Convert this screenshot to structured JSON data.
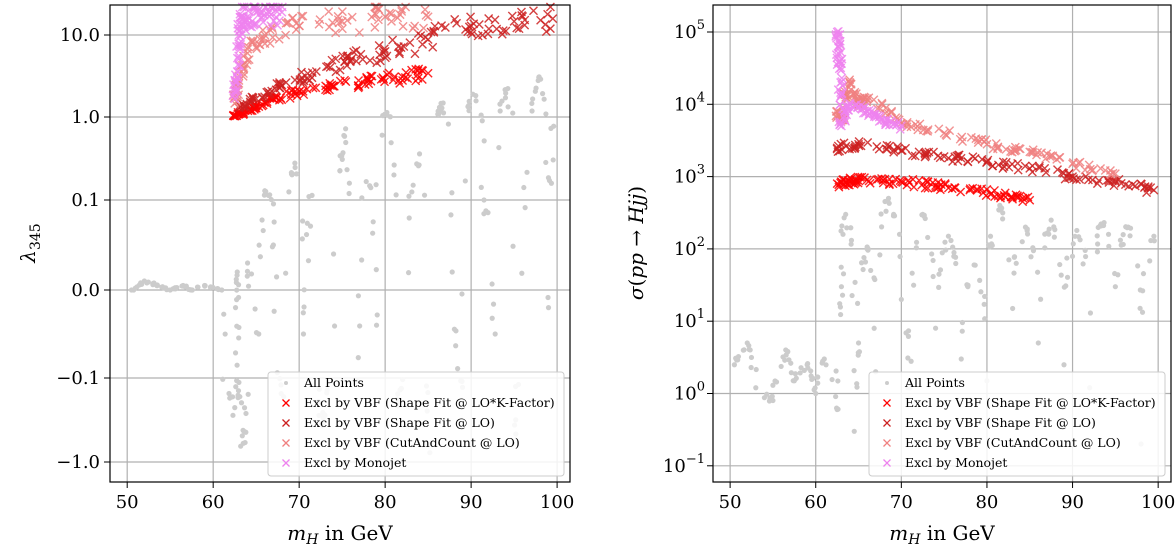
{
  "colors": {
    "all_points": "#cccccc",
    "excl_vbf_shape_lo_kfactor": "#ff0000",
    "excl_vbf_shape_lo": "#cc2020",
    "excl_vbf_cutcount_lo": "#f08080",
    "excl_monojet": "#ee82ee",
    "grid": "#b0b0b0"
  },
  "chart_data": [
    {
      "type": "scatter",
      "xlabel": "m_H in GeV",
      "ylabel": "λ345",
      "yscale": "symlog",
      "xlim": [
        48,
        101.5
      ],
      "x_ticks": [
        50,
        60,
        70,
        80,
        90,
        100
      ],
      "y_ticks": [
        -1.0,
        -0.1,
        0.0,
        0.1,
        1.0,
        10.0
      ],
      "y_tick_labels": [
        "−1.0",
        "−0.1",
        "0.0",
        "0.1",
        "1.0",
        "10.0"
      ],
      "grid": true,
      "legend_position": "lower-right",
      "legend": [
        "All Points",
        "Excl by VBF (Shape Fit @ LO*K-Factor)",
        "Excl by VBF (Shape Fit @ LO)",
        "Excl by VBF (CutAndCount @ LO)",
        "Excl by Monojet"
      ],
      "series": [
        {
          "name": "All Points",
          "marker": "dot",
          "color": "#cccccc",
          "points": [
            [
              50.5,
              0.0
            ],
            [
              52,
              0.01
            ],
            [
              53.5,
              0.005
            ],
            [
              55,
              0.0
            ],
            [
              56.5,
              0.005
            ],
            [
              57.5,
              0.0
            ],
            [
              59,
              0.005
            ],
            [
              61,
              0.0
            ],
            [
              62.3,
              -0.5
            ],
            [
              62.6,
              -0.02
            ],
            [
              62.8,
              0.02
            ],
            [
              63.1,
              -0.3
            ],
            [
              63.5,
              -0.8
            ],
            [
              64,
              0.03
            ],
            [
              65.3,
              -0.05
            ],
            [
              66,
              0.2
            ],
            [
              67,
              0.05
            ],
            [
              68.2,
              -0.3
            ],
            [
              69.5,
              0.5
            ],
            [
              70.5,
              -0.05
            ],
            [
              71.5,
              0.15
            ],
            [
              72.8,
              -0.6
            ],
            [
              74,
              0.04
            ],
            [
              75.2,
              0.8
            ],
            [
              76.5,
              -0.15
            ],
            [
              77.8,
              0.3
            ],
            [
              79,
              -0.04
            ],
            [
              80.2,
              1.5
            ],
            [
              81.5,
              -0.4
            ],
            [
              82.8,
              0.08
            ],
            [
              84,
              0.6
            ],
            [
              85.2,
              -0.9
            ],
            [
              86.5,
              2.5
            ],
            [
              87.8,
              0.02
            ],
            [
              89,
              -0.2
            ],
            [
              90.2,
              3.5
            ],
            [
              91.5,
              0.1
            ],
            [
              92.8,
              -0.05
            ],
            [
              94,
              4.0
            ],
            [
              95.2,
              -0.7
            ],
            [
              96.5,
              0.4
            ],
            [
              97.8,
              5.0
            ],
            [
              99,
              -0.02
            ],
            [
              99.6,
              0.9
            ]
          ]
        },
        {
          "name": "Excl by VBF (Shape Fit @ LO*K-Factor)",
          "marker": "x",
          "color": "#ff0000",
          "points": [
            [
              62.5,
              1.1
            ],
            [
              63.5,
              1.5
            ],
            [
              65,
              2.2
            ],
            [
              67,
              3.0
            ],
            [
              70,
              3.8
            ],
            [
              74,
              4.4
            ],
            [
              78,
              5.0
            ],
            [
              82,
              5.4
            ],
            [
              85,
              5.8
            ]
          ]
        },
        {
          "name": "Excl by VBF (Shape Fit @ LO)",
          "marker": "x",
          "color": "#cc2020",
          "points": [
            [
              63,
              2.0
            ],
            [
              65,
              3.0
            ],
            [
              68,
              4.5
            ],
            [
              72,
              6.0
            ],
            [
              76,
              7.2
            ],
            [
              80,
              8.2
            ],
            [
              85,
              9.5
            ],
            [
              90,
              11.0
            ],
            [
              95,
              11.5
            ],
            [
              99.5,
              11.8
            ]
          ]
        },
        {
          "name": "Excl by VBF (CutAndCount @ LO)",
          "marker": "x",
          "color": "#f08080",
          "points": [
            [
              62.5,
              2.5
            ],
            [
              63,
              5.0
            ],
            [
              64,
              8.0
            ],
            [
              66,
              10.0
            ],
            [
              70,
              11.0
            ],
            [
              75,
              11.5
            ],
            [
              80,
              12.0
            ],
            [
              85,
              12.0
            ]
          ]
        },
        {
          "name": "Excl by Monojet",
          "marker": "x",
          "color": "#ee82ee",
          "points": [
            [
              62.5,
              3.0
            ],
            [
              62.8,
              6.0
            ],
            [
              63,
              10.0
            ],
            [
              63.3,
              12.0
            ],
            [
              64,
              12.0
            ],
            [
              65,
              12.5
            ],
            [
              66.5,
              12.5
            ],
            [
              68,
              12.5
            ]
          ]
        }
      ]
    },
    {
      "type": "scatter",
      "xlabel": "m_H in GeV",
      "ylabel": "σ(pp → Hjj)",
      "yscale": "log",
      "xlim": [
        48,
        101.5
      ],
      "ylim": [
        0.05,
        200000
      ],
      "x_ticks": [
        50,
        60,
        70,
        80,
        90,
        100
      ],
      "y_ticks": [
        0.1,
        1,
        10,
        100,
        1000,
        10000,
        100000
      ],
      "y_tick_labels": [
        "10",
        "10",
        "10",
        "10",
        "10",
        "10",
        "10"
      ],
      "y_tick_exponents": [
        "−1",
        "0",
        "1",
        "2",
        "3",
        "4",
        "5"
      ],
      "grid": true,
      "legend_position": "lower-right",
      "legend": [
        "All Points",
        "Excl by VBF (Shape Fit @ LO*K-Factor)",
        "Excl by VBF (Shape Fit @ LO)",
        "Excl by VBF (CutAndCount @ LO)",
        "Excl by Monojet"
      ],
      "series": [
        {
          "name": "All Points",
          "marker": "dot",
          "color": "#cccccc",
          "points": [
            [
              50.5,
              2.5
            ],
            [
              52,
              5
            ],
            [
              53,
              1.2
            ],
            [
              55,
              0.8
            ],
            [
              56.5,
              4
            ],
            [
              57.5,
              1.5
            ],
            [
              59,
              2.5
            ],
            [
              60,
              1.0
            ],
            [
              61,
              3.0
            ],
            [
              62.5,
              0.6
            ],
            [
              63,
              30
            ],
            [
              63.5,
              300
            ],
            [
              64.5,
              0.3
            ],
            [
              65,
              5
            ],
            [
              66,
              100
            ],
            [
              67,
              2
            ],
            [
              68.5,
              500
            ],
            [
              70,
              20
            ],
            [
              71,
              1.2
            ],
            [
              72.5,
              300
            ],
            [
              74,
              8
            ],
            [
              75.5,
              150
            ],
            [
              77,
              3
            ],
            [
              78.5,
              60
            ],
            [
              80,
              1.5
            ],
            [
              81.5,
              400
            ],
            [
              83,
              15
            ],
            [
              84.5,
              200
            ],
            [
              86,
              5
            ],
            [
              87.5,
              250
            ],
            [
              89,
              2.5
            ],
            [
              90.5,
              180
            ],
            [
              92,
              1.2
            ],
            [
              93.5,
              220
            ],
            [
              95,
              30
            ],
            [
              96.5,
              200
            ],
            [
              98,
              0.2
            ],
            [
              99.5,
              150
            ]
          ]
        },
        {
          "name": "Excl by VBF (Shape Fit @ LO*K-Factor)",
          "marker": "x",
          "color": "#ff0000",
          "points": [
            [
              62.5,
              800
            ],
            [
              64,
              850
            ],
            [
              66,
              900
            ],
            [
              70,
              850
            ],
            [
              74,
              750
            ],
            [
              78,
              650
            ],
            [
              82,
              550
            ],
            [
              85,
              470
            ]
          ]
        },
        {
          "name": "Excl by VBF (Shape Fit @ LO)",
          "marker": "x",
          "color": "#cc2020",
          "points": [
            [
              62.5,
              2500
            ],
            [
              65,
              2800
            ],
            [
              70,
              2300
            ],
            [
              75,
              1900
            ],
            [
              80,
              1600
            ],
            [
              85,
              1300
            ],
            [
              90,
              1000
            ],
            [
              95,
              850
            ],
            [
              99.5,
              650
            ]
          ]
        },
        {
          "name": "Excl by VBF (CutAndCount @ LO)",
          "marker": "x",
          "color": "#f08080",
          "points": [
            [
              62.5,
              8000
            ],
            [
              63,
              6000
            ],
            [
              64,
              20000
            ],
            [
              65,
              10000
            ],
            [
              66,
              12000
            ],
            [
              70,
              5500
            ],
            [
              75,
              4000
            ],
            [
              80,
              2800
            ],
            [
              85,
              2200
            ],
            [
              90,
              1500
            ],
            [
              95,
              1100
            ]
          ]
        },
        {
          "name": "Excl by Monojet",
          "marker": "x",
          "color": "#ee82ee",
          "points": [
            [
              62.5,
              100000
            ],
            [
              62.7,
              50000
            ],
            [
              62.9,
              20000
            ],
            [
              63,
              5000
            ],
            [
              64,
              10000
            ],
            [
              66,
              8000
            ],
            [
              68,
              6000
            ],
            [
              70,
              5000
            ]
          ]
        }
      ]
    }
  ]
}
